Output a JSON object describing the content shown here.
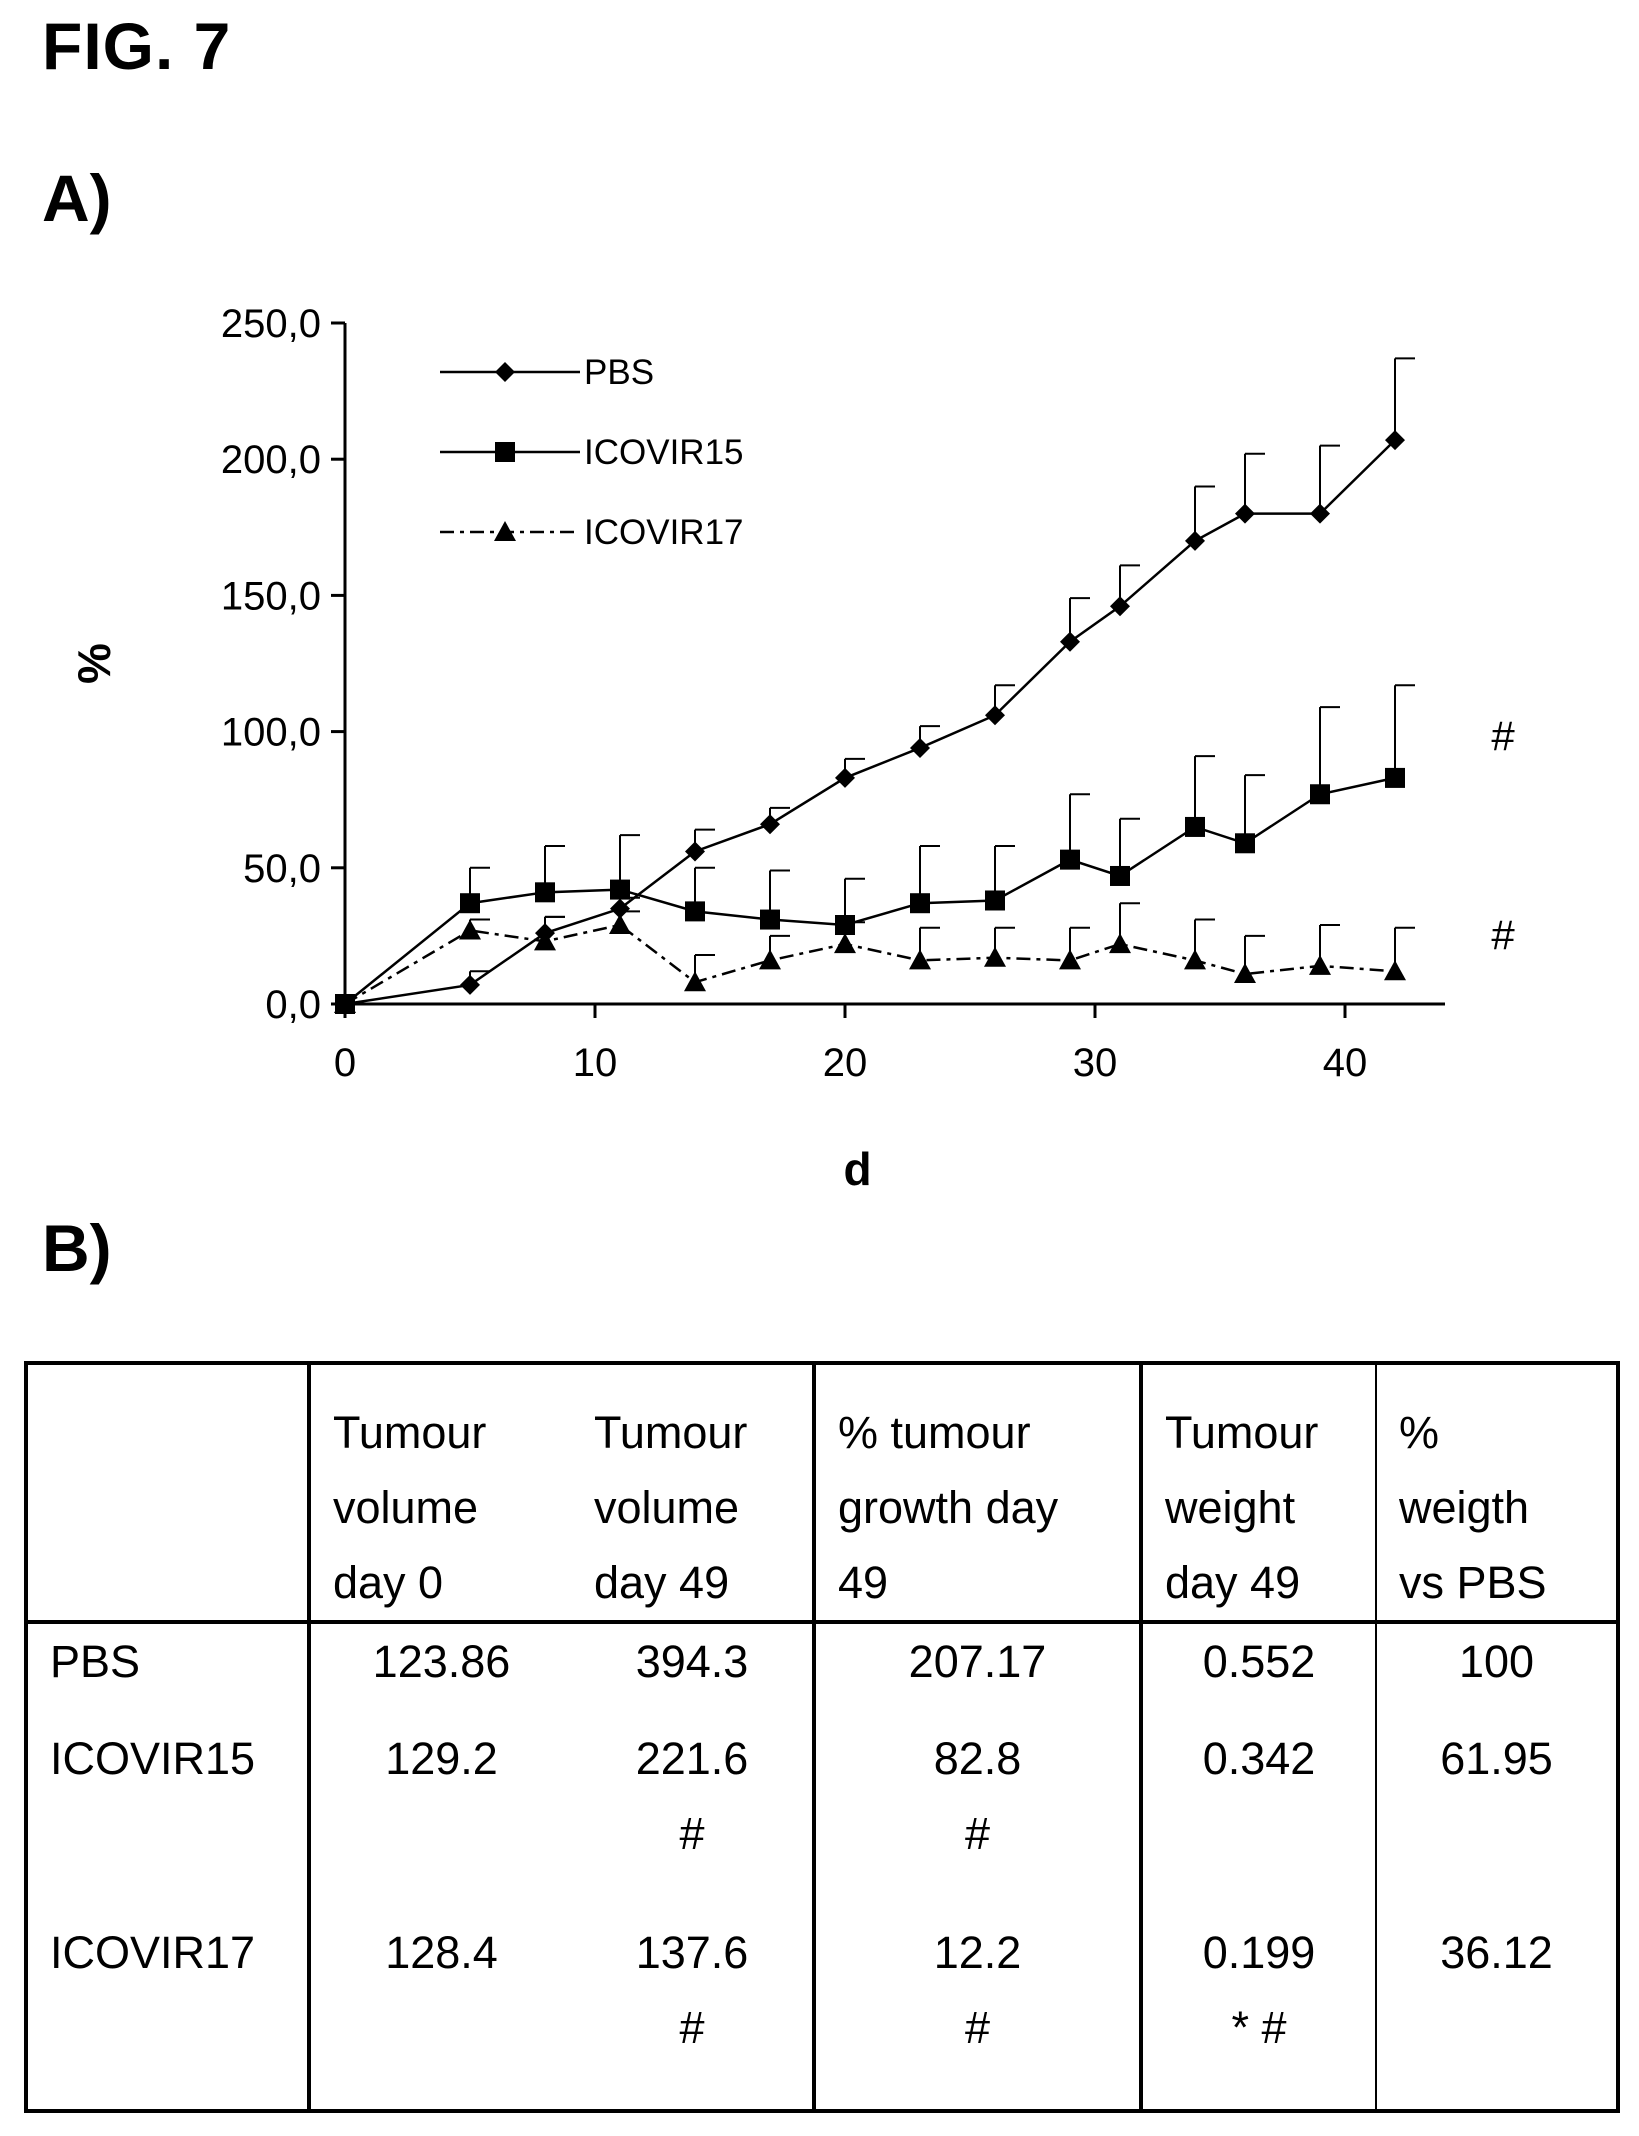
{
  "figure_title": "FIG. 7",
  "panel_a_label": "A)",
  "panel_b_label": "B)",
  "chart_data": {
    "type": "line",
    "xlabel": "d",
    "ylabel": "%",
    "xlim": [
      0,
      44
    ],
    "ylim": [
      0,
      250
    ],
    "x_ticks": [
      "0",
      "10",
      "20",
      "30",
      "40"
    ],
    "y_ticks": [
      "0,0",
      "50,0",
      "100,0",
      "150,0",
      "200,0",
      "250,0"
    ],
    "legend_position": "top-left",
    "series": [
      {
        "name": "PBS",
        "marker": "diamond",
        "line_style": "solid",
        "x": [
          0,
          5,
          8,
          11,
          14,
          17,
          20,
          23,
          26,
          29,
          31,
          34,
          36,
          39,
          42
        ],
        "y": [
          0,
          7,
          26,
          35,
          56,
          66,
          83,
          94,
          106,
          133,
          146,
          170,
          180,
          180,
          207
        ],
        "error": [
          0,
          5,
          6,
          4,
          8,
          6,
          7,
          8,
          11,
          16,
          15,
          20,
          22,
          25,
          30
        ]
      },
      {
        "name": "ICOVIR15",
        "marker": "square",
        "line_style": "solid",
        "x": [
          0,
          5,
          8,
          11,
          14,
          17,
          20,
          23,
          26,
          29,
          31,
          34,
          36,
          39,
          42
        ],
        "y": [
          0,
          37,
          41,
          42,
          34,
          31,
          29,
          37,
          38,
          53,
          47,
          65,
          59,
          77,
          83
        ],
        "error": [
          0,
          13,
          17,
          20,
          16,
          18,
          17,
          21,
          20,
          24,
          21,
          26,
          25,
          32,
          34
        ]
      },
      {
        "name": "ICOVIR17",
        "marker": "triangle",
        "line_style": "dash-dot",
        "x": [
          0,
          5,
          8,
          11,
          14,
          17,
          20,
          23,
          26,
          29,
          31,
          34,
          36,
          39,
          42
        ],
        "y": [
          0,
          27,
          23,
          29,
          8,
          16,
          22,
          16,
          17,
          16,
          22,
          16,
          11,
          14,
          12
        ],
        "error": [
          0,
          4,
          9,
          5,
          10,
          9,
          8,
          12,
          11,
          12,
          15,
          15,
          14,
          15,
          16
        ]
      }
    ],
    "annotations": [
      {
        "text": "#",
        "series": "ICOVIR15"
      },
      {
        "text": "#",
        "series": "ICOVIR17"
      }
    ]
  },
  "table": {
    "headers": [
      "",
      [
        "Tumour",
        "volume",
        "day 0"
      ],
      [
        "Tumour",
        "volume",
        "day 49"
      ],
      [
        "% tumour",
        "growth day",
        "49"
      ],
      [
        "Tumour",
        "weight",
        "day 49"
      ],
      [
        "%",
        "weigth",
        "vs PBS"
      ]
    ],
    "rows": [
      {
        "label": "PBS",
        "cells": [
          [
            "123.86"
          ],
          [
            "394.3"
          ],
          [
            "207.17"
          ],
          [
            "0.552"
          ],
          [
            "100"
          ]
        ]
      },
      {
        "label": "ICOVIR15",
        "cells": [
          [
            "129.2"
          ],
          [
            "221.6",
            "#"
          ],
          [
            "82.8",
            "#"
          ],
          [
            "0.342"
          ],
          [
            "61.95"
          ]
        ]
      },
      {
        "label": "ICOVIR17",
        "cells": [
          [
            "128.4"
          ],
          [
            "137.6",
            "#"
          ],
          [
            "12.2",
            "#"
          ],
          [
            "0.199",
            "* #"
          ],
          [
            "36.12"
          ]
        ]
      }
    ]
  }
}
